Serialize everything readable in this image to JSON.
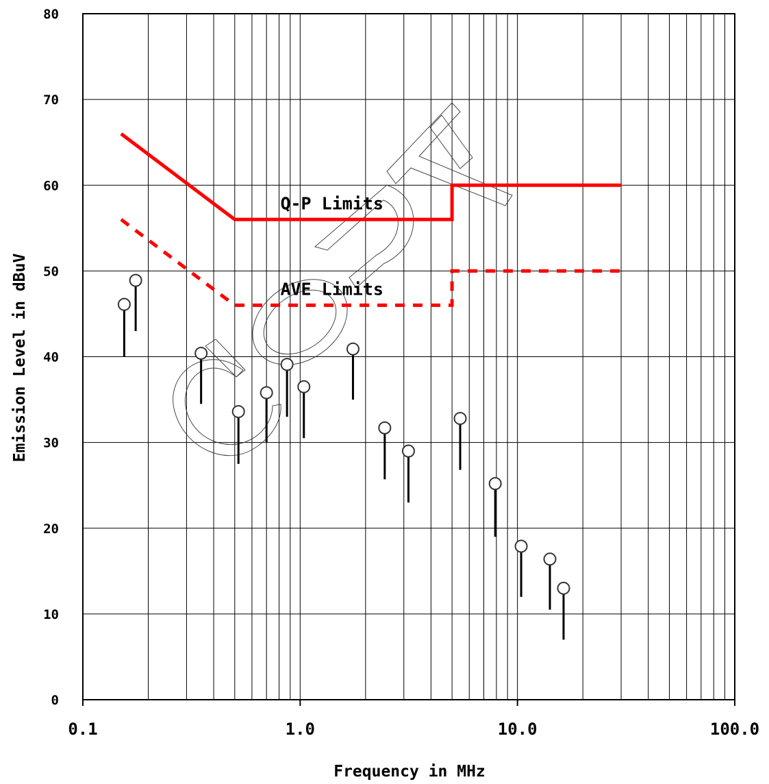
{
  "chart_data": {
    "type": "scatter",
    "xlabel": "Frequency in MHz",
    "ylabel": "Emission Level in dBuV",
    "x_scale": "log",
    "xlim": [
      0.1,
      100
    ],
    "ylim": [
      0,
      80
    ],
    "x_ticks": [
      "0.1",
      "1.0",
      "10.0",
      "100.0"
    ],
    "y_ticks": [
      "0",
      "10",
      "20",
      "30",
      "40",
      "50",
      "60",
      "70",
      "80"
    ],
    "grid": true,
    "limit_lines": [
      {
        "name": "Q-P Limits",
        "color": "#ff0000",
        "style": "solid",
        "x": [
          0.15,
          0.5,
          5,
          5,
          30
        ],
        "y": [
          66,
          56,
          56,
          60,
          60
        ]
      },
      {
        "name": "AVE Limits",
        "color": "#ff0000",
        "style": "dashed",
        "x": [
          0.15,
          0.5,
          5,
          5,
          30
        ],
        "y": [
          56,
          46,
          46,
          50,
          50
        ]
      }
    ],
    "series": [
      {
        "marker": "circle-with-stem",
        "x": [
          0.155,
          0.175,
          0.35,
          0.52,
          0.7,
          0.87,
          1.04,
          1.75,
          2.45,
          3.15,
          5.45,
          7.9,
          10.4,
          14.1,
          16.3
        ],
        "y": [
          46.1,
          48.9,
          40.4,
          33.6,
          35.8,
          39.1,
          36.5,
          40.9,
          31.7,
          29.0,
          32.8,
          25.2,
          17.9,
          16.4,
          13.0
        ],
        "stem_bottom": [
          40,
          43,
          34.5,
          27.5,
          30,
          33,
          30.5,
          35,
          25.7,
          23,
          26.8,
          19,
          12,
          10.5,
          7
        ]
      }
    ]
  },
  "watermark": {
    "text": "COPY"
  }
}
